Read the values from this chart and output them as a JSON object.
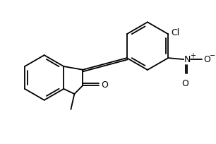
{
  "bg": "#ffffff",
  "lw": 1.3,
  "lw2": 2.2,
  "fig_w": 3.06,
  "fig_h": 2.04,
  "dpi": 100,
  "atoms": {
    "N_label": "N",
    "O_label": "O",
    "O2_label": "O",
    "Cl_label": "Cl",
    "N2_label": "N",
    "Om_label": "O"
  }
}
